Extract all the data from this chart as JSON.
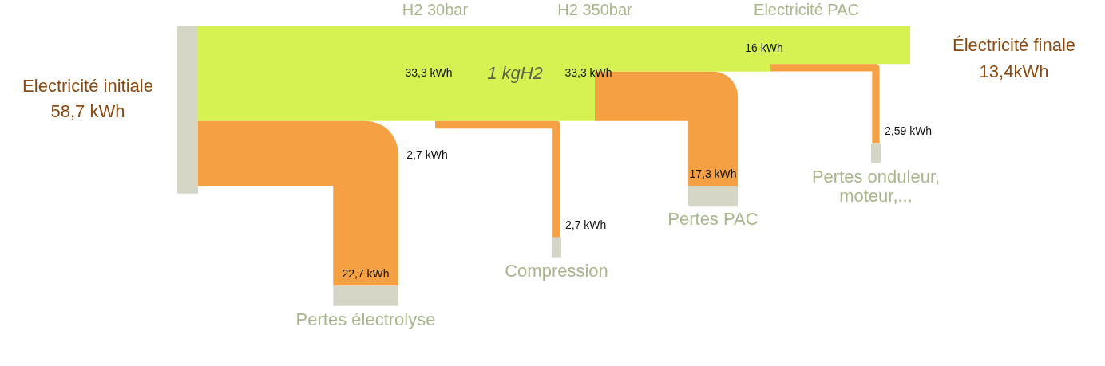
{
  "chart_data": {
    "type": "other",
    "categories": [
      "Electricité initiale",
      "H2 30bar",
      "H2 350bar",
      "Electricité PAC",
      "Électricité finale",
      "Pertes électrolyse",
      "Compression",
      "Pertes PAC",
      "Pertes onduleur, moteur,..."
    ],
    "values": [
      58.7,
      33.3,
      33.3,
      16,
      13.4,
      22.7,
      2.7,
      17.3,
      2.59
    ],
    "value_labels": [
      "58,7 kWh",
      "33,3 kWh",
      "33,3 kWh",
      "16 kWh",
      "13,4kWh",
      "22,7 kWh",
      "2,7 kWh",
      "17,3 kWh",
      "2,59 kWh"
    ],
    "colors": [
      "#d6d6c6",
      "#d5f252",
      "#d5f252",
      "#d5f252",
      "#d5f252",
      "#f5a043",
      "#f5a043",
      "#f5a043",
      "#f5a043"
    ],
    "annotations": [
      "1 kgH2",
      "2,7 kWh"
    ]
  }
}
